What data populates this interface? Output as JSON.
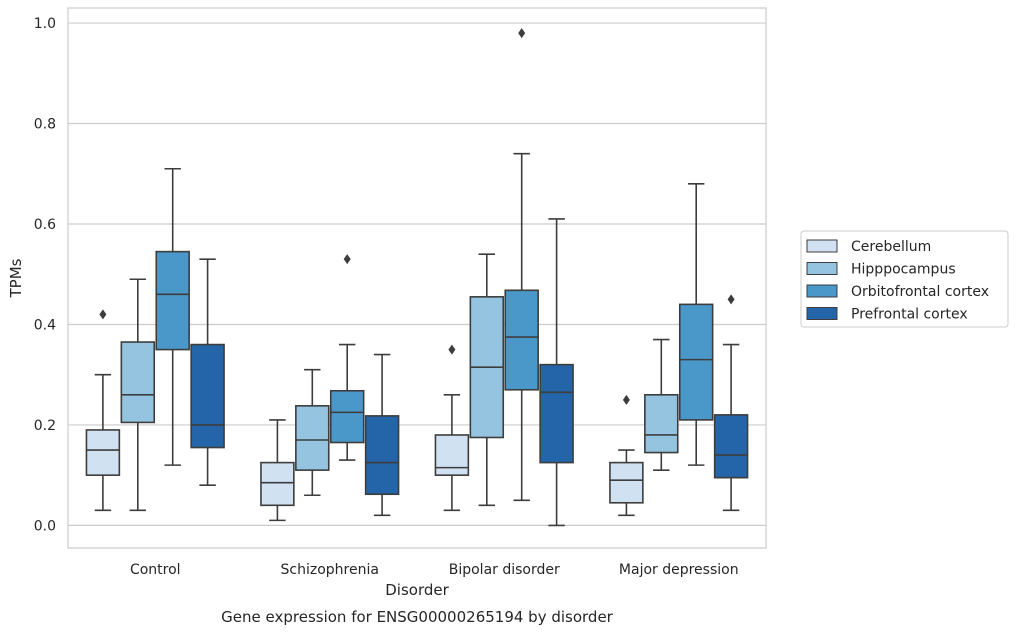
{
  "chart_data": {
    "type": "box",
    "caption": "Gene expression for ENSG00000265194 by disorder",
    "xlabel": "Disorder",
    "ylabel": "TPMs",
    "ylim": [
      -0.045,
      1.03
    ],
    "yticks": [
      0.0,
      0.2,
      0.4,
      0.6,
      0.8,
      1.0
    ],
    "ytick_labels": [
      "0.0",
      "0.2",
      "0.4",
      "0.6",
      "0.8",
      "1.0"
    ],
    "grid": "horizontal",
    "legend_position": "right",
    "categories": [
      "Control",
      "Schizophrenia",
      "Bipolar disorder",
      "Major depression"
    ],
    "series": [
      {
        "name": "Cerebellum",
        "color": "#d0e1f2",
        "boxes": [
          {
            "whisker_low": 0.03,
            "q1": 0.1,
            "median": 0.15,
            "q3": 0.19,
            "whisker_high": 0.3,
            "outliers": [
              0.42
            ]
          },
          {
            "whisker_low": 0.01,
            "q1": 0.04,
            "median": 0.085,
            "q3": 0.125,
            "whisker_high": 0.21,
            "outliers": []
          },
          {
            "whisker_low": 0.03,
            "q1": 0.1,
            "median": 0.115,
            "q3": 0.18,
            "whisker_high": 0.26,
            "outliers": [
              0.35
            ]
          },
          {
            "whisker_low": 0.02,
            "q1": 0.045,
            "median": 0.09,
            "q3": 0.125,
            "whisker_high": 0.15,
            "outliers": [
              0.25
            ]
          }
        ]
      },
      {
        "name": "Hipppocampus",
        "color": "#94c4df",
        "boxes": [
          {
            "whisker_low": 0.03,
            "q1": 0.205,
            "median": 0.26,
            "q3": 0.365,
            "whisker_high": 0.49,
            "outliers": []
          },
          {
            "whisker_low": 0.06,
            "q1": 0.11,
            "median": 0.17,
            "q3": 0.238,
            "whisker_high": 0.31,
            "outliers": []
          },
          {
            "whisker_low": 0.04,
            "q1": 0.175,
            "median": 0.315,
            "q3": 0.455,
            "whisker_high": 0.54,
            "outliers": []
          },
          {
            "whisker_low": 0.11,
            "q1": 0.145,
            "median": 0.18,
            "q3": 0.26,
            "whisker_high": 0.37,
            "outliers": []
          }
        ]
      },
      {
        "name": "Orbitofrontal cortex",
        "color": "#4a98c9",
        "boxes": [
          {
            "whisker_low": 0.12,
            "q1": 0.35,
            "median": 0.46,
            "q3": 0.545,
            "whisker_high": 0.71,
            "outliers": []
          },
          {
            "whisker_low": 0.13,
            "q1": 0.165,
            "median": 0.225,
            "q3": 0.268,
            "whisker_high": 0.36,
            "outliers": [
              0.53
            ]
          },
          {
            "whisker_low": 0.05,
            "q1": 0.27,
            "median": 0.375,
            "q3": 0.468,
            "whisker_high": 0.74,
            "outliers": [
              0.98
            ]
          },
          {
            "whisker_low": 0.12,
            "q1": 0.21,
            "median": 0.33,
            "q3": 0.44,
            "whisker_high": 0.68,
            "outliers": []
          }
        ]
      },
      {
        "name": "Prefrontal cortex",
        "color": "#2464a8",
        "boxes": [
          {
            "whisker_low": 0.08,
            "q1": 0.155,
            "median": 0.2,
            "q3": 0.36,
            "whisker_high": 0.53,
            "outliers": []
          },
          {
            "whisker_low": 0.02,
            "q1": 0.062,
            "median": 0.125,
            "q3": 0.218,
            "whisker_high": 0.34,
            "outliers": []
          },
          {
            "whisker_low": 0.0,
            "q1": 0.125,
            "median": 0.265,
            "q3": 0.32,
            "whisker_high": 0.61,
            "outliers": []
          },
          {
            "whisker_low": 0.03,
            "q1": 0.095,
            "median": 0.14,
            "q3": 0.22,
            "whisker_high": 0.36,
            "outliers": [
              0.45
            ]
          }
        ]
      }
    ]
  }
}
